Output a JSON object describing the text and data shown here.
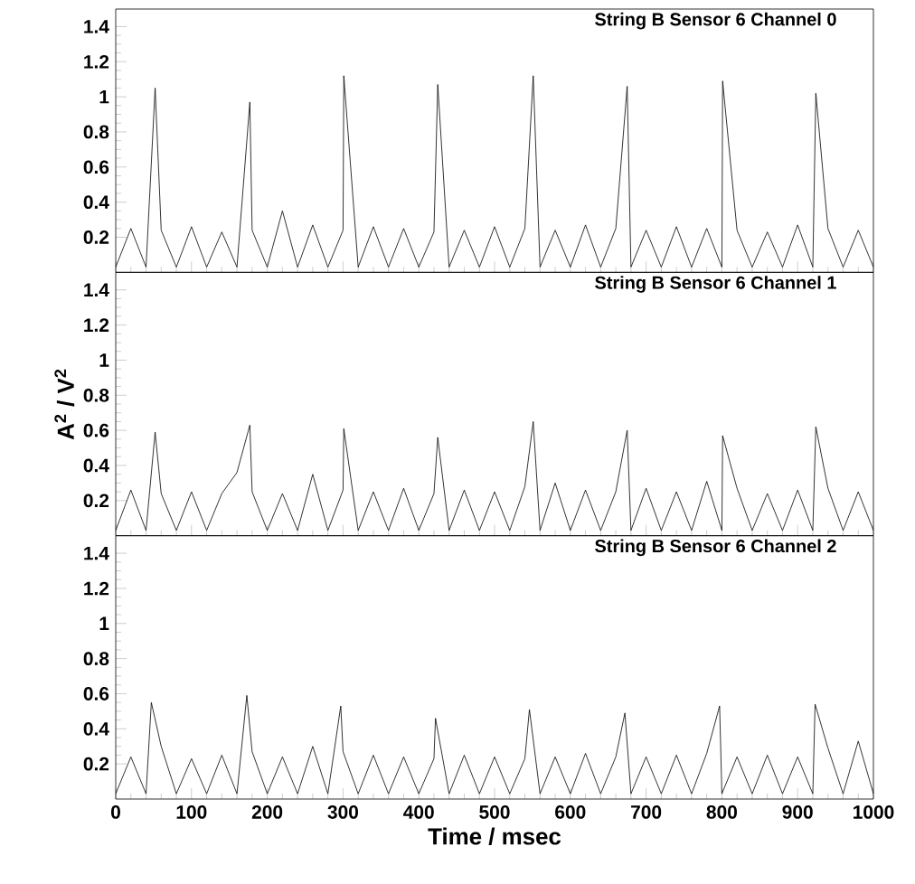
{
  "chart_data": [
    {
      "type": "line",
      "title": "String B Sensor 6 Channel 0",
      "tick_labels": "y",
      "xlim": [
        0,
        1000
      ],
      "ylim": [
        0,
        1.5
      ],
      "xticks": [
        0,
        100,
        200,
        300,
        400,
        500,
        600,
        700,
        800,
        900,
        1000
      ],
      "yticks": [
        0.2,
        0.4,
        0.6,
        0.8,
        1,
        1.2,
        1.4
      ],
      "series": [
        {
          "color": "#000000",
          "x": [
            0,
            20,
            40,
            52,
            60,
            80,
            100,
            120,
            140,
            160,
            177,
            180,
            200,
            220,
            240,
            260,
            280,
            300,
            301,
            320,
            340,
            360,
            380,
            400,
            420,
            425,
            440,
            460,
            480,
            500,
            520,
            540,
            551,
            560,
            580,
            600,
            620,
            640,
            660,
            675,
            680,
            700,
            720,
            740,
            760,
            780,
            800,
            801,
            820,
            840,
            860,
            880,
            900,
            920,
            924,
            940,
            960,
            980,
            1000
          ],
          "values": [
            0.03,
            0.25,
            0.03,
            1.05,
            0.24,
            0.03,
            0.26,
            0.03,
            0.23,
            0.03,
            0.97,
            0.24,
            0.03,
            0.35,
            0.03,
            0.27,
            0.03,
            0.24,
            1.12,
            0.03,
            0.26,
            0.03,
            0.25,
            0.03,
            0.23,
            1.07,
            0.03,
            0.24,
            0.03,
            0.26,
            0.03,
            0.25,
            1.12,
            0.03,
            0.24,
            0.03,
            0.27,
            0.03,
            0.25,
            1.06,
            0.03,
            0.24,
            0.03,
            0.26,
            0.03,
            0.25,
            0.03,
            1.09,
            0.24,
            0.03,
            0.23,
            0.03,
            0.27,
            0.03,
            1.02,
            0.25,
            0.03,
            0.24,
            0.03
          ]
        }
      ]
    },
    {
      "type": "line",
      "title": "String B Sensor 6 Channel 1",
      "ylabel": "A$^{2}$ / V$^{2}$",
      "tick_labels": "y",
      "xlim": [
        0,
        1000
      ],
      "ylim": [
        0,
        1.5
      ],
      "xticks": [
        0,
        100,
        200,
        300,
        400,
        500,
        600,
        700,
        800,
        900,
        1000
      ],
      "yticks": [
        0.2,
        0.4,
        0.6,
        0.8,
        1,
        1.2,
        1.4
      ],
      "series": [
        {
          "color": "#000000",
          "x": [
            0,
            20,
            40,
            52,
            60,
            80,
            100,
            120,
            140,
            160,
            177,
            180,
            200,
            220,
            240,
            260,
            280,
            300,
            301,
            320,
            340,
            360,
            380,
            400,
            420,
            425,
            440,
            460,
            480,
            500,
            520,
            540,
            551,
            560,
            580,
            600,
            620,
            640,
            660,
            675,
            680,
            700,
            720,
            740,
            760,
            780,
            800,
            801,
            820,
            840,
            860,
            880,
            900,
            920,
            924,
            940,
            960,
            980,
            1000
          ],
          "values": [
            0.03,
            0.26,
            0.03,
            0.59,
            0.24,
            0.03,
            0.25,
            0.03,
            0.24,
            0.36,
            0.63,
            0.25,
            0.03,
            0.24,
            0.03,
            0.35,
            0.03,
            0.26,
            0.61,
            0.03,
            0.25,
            0.03,
            0.27,
            0.03,
            0.24,
            0.56,
            0.03,
            0.26,
            0.03,
            0.25,
            0.03,
            0.28,
            0.65,
            0.03,
            0.3,
            0.03,
            0.26,
            0.03,
            0.25,
            0.6,
            0.03,
            0.27,
            0.03,
            0.25,
            0.03,
            0.31,
            0.03,
            0.57,
            0.27,
            0.03,
            0.24,
            0.03,
            0.26,
            0.03,
            0.62,
            0.27,
            0.03,
            0.25,
            0.03
          ]
        }
      ]
    },
    {
      "type": "line",
      "title": "String B Sensor 6 Channel 2",
      "xlabel": "Time / msec",
      "xlim": [
        0,
        1000
      ],
      "ylim": [
        0,
        1.5
      ],
      "xticks": [
        0,
        100,
        200,
        300,
        400,
        500,
        600,
        700,
        800,
        900,
        1000
      ],
      "yticks": [
        0.2,
        0.4,
        0.6,
        0.8,
        1,
        1.2,
        1.4
      ],
      "series": [
        {
          "color": "#000000",
          "x": [
            0,
            20,
            40,
            47,
            60,
            80,
            100,
            120,
            140,
            160,
            173,
            180,
            200,
            220,
            240,
            260,
            280,
            297,
            300,
            320,
            340,
            360,
            380,
            400,
            420,
            422,
            440,
            460,
            480,
            500,
            520,
            540,
            546,
            560,
            580,
            600,
            620,
            640,
            660,
            672,
            680,
            700,
            720,
            740,
            760,
            780,
            797,
            800,
            820,
            840,
            860,
            880,
            900,
            920,
            923,
            940,
            960,
            980,
            1000
          ],
          "values": [
            0.03,
            0.24,
            0.03,
            0.55,
            0.3,
            0.03,
            0.23,
            0.03,
            0.25,
            0.03,
            0.59,
            0.27,
            0.03,
            0.24,
            0.03,
            0.3,
            0.03,
            0.53,
            0.27,
            0.03,
            0.25,
            0.03,
            0.24,
            0.03,
            0.23,
            0.46,
            0.03,
            0.25,
            0.03,
            0.24,
            0.03,
            0.23,
            0.51,
            0.03,
            0.24,
            0.03,
            0.26,
            0.03,
            0.24,
            0.49,
            0.03,
            0.24,
            0.03,
            0.25,
            0.03,
            0.26,
            0.53,
            0.03,
            0.24,
            0.03,
            0.25,
            0.03,
            0.24,
            0.03,
            0.54,
            0.29,
            0.03,
            0.33,
            0.03
          ]
        }
      ]
    }
  ]
}
